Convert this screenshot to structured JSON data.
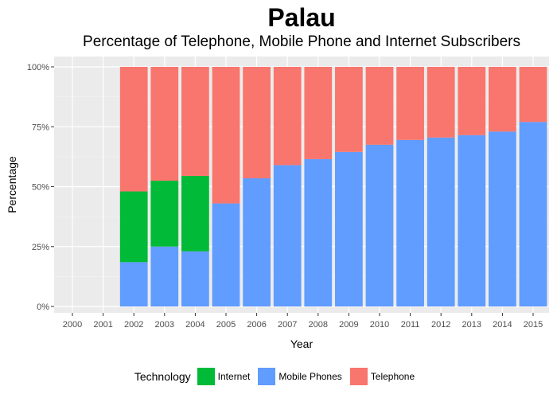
{
  "chart_data": {
    "type": "bar",
    "stacked": true,
    "title": "Palau",
    "subtitle": "Percentage of Telephone, Mobile Phone and Internet Subscribers",
    "xlabel": "Year",
    "ylabel": "Percentage",
    "ylim": [
      0,
      100
    ],
    "yticks": [
      "0%",
      "25%",
      "50%",
      "75%",
      "100%"
    ],
    "ytick_values": [
      0,
      25,
      50,
      75,
      100
    ],
    "categories": [
      "2000",
      "2001",
      "2002",
      "2003",
      "2004",
      "2005",
      "2006",
      "2007",
      "2008",
      "2009",
      "2010",
      "2011",
      "2012",
      "2013",
      "2014",
      "2015"
    ],
    "series": [
      {
        "name": "Mobile Phones",
        "color": "#619cff",
        "values": [
          0,
          0,
          18.5,
          25,
          23,
          43,
          53.5,
          59,
          61.5,
          64.5,
          67.5,
          69.5,
          70.5,
          71.5,
          73,
          77
        ]
      },
      {
        "name": "Internet",
        "color": "#00ba38",
        "values": [
          0,
          0,
          29.5,
          27.5,
          31.5,
          0,
          0,
          0,
          0,
          0,
          0,
          0,
          0,
          0,
          0,
          0
        ]
      },
      {
        "name": "Telephone",
        "color": "#f8766d",
        "values": [
          0,
          0,
          52,
          47.5,
          45.5,
          57,
          46.5,
          41,
          38.5,
          35.5,
          32.5,
          30.5,
          29.5,
          28.5,
          27,
          23
        ]
      }
    ],
    "legend": {
      "title": "Technology",
      "position": "bottom",
      "items": [
        {
          "name": "Internet",
          "color": "#00ba38"
        },
        {
          "name": "Mobile Phones",
          "color": "#619cff"
        },
        {
          "name": "Telephone",
          "color": "#f8766d"
        }
      ]
    },
    "grid": true,
    "panel_background": "#ebebeb"
  }
}
